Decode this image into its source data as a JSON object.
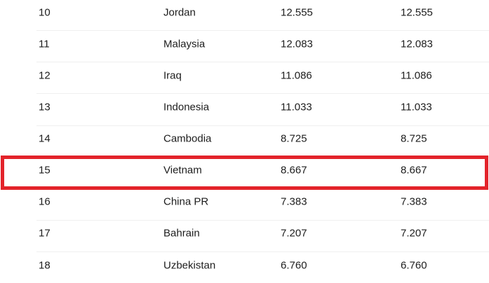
{
  "table": {
    "rows": [
      {
        "rank": "10",
        "team": "Jordan",
        "points": "12.555",
        "points_2": "12.555"
      },
      {
        "rank": "11",
        "team": "Malaysia",
        "points": "12.083",
        "points_2": "12.083"
      },
      {
        "rank": "12",
        "team": "Iraq",
        "points": "11.086",
        "points_2": "11.086"
      },
      {
        "rank": "13",
        "team": "Indonesia",
        "points": "11.033",
        "points_2": "11.033"
      },
      {
        "rank": "14",
        "team": "Cambodia",
        "points": "8.725",
        "points_2": "8.725"
      },
      {
        "rank": "15",
        "team": "Vietnam",
        "points": "8.667",
        "points_2": "8.667"
      },
      {
        "rank": "16",
        "team": "China PR",
        "points": "7.383",
        "points_2": "7.383"
      },
      {
        "rank": "17",
        "team": "Bahrain",
        "points": "7.207",
        "points_2": "7.207"
      },
      {
        "rank": "18",
        "team": "Uzbekistan",
        "points": "6.760",
        "points_2": "6.760"
      }
    ]
  },
  "highlight": {
    "highlighted_rank": "15",
    "highlighted_team": "Vietnam",
    "color": "#e3232a"
  },
  "colors": {
    "background": "#ffffff",
    "divider": "#efefef",
    "text": "#1d1d1d"
  }
}
